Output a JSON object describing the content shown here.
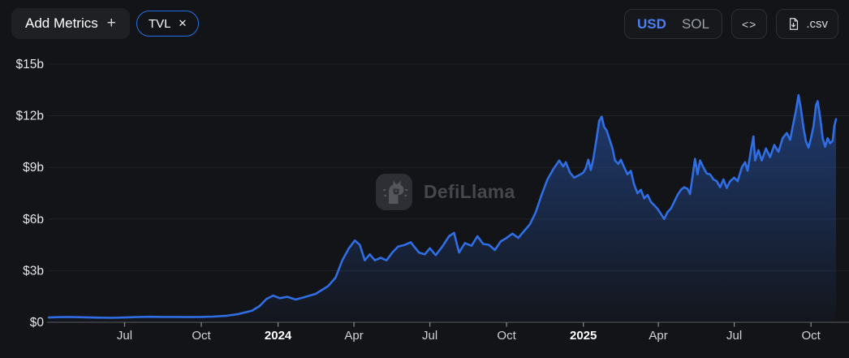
{
  "toolbar": {
    "add_metrics": {
      "label": "Add Metrics",
      "plus_icon": "+"
    },
    "metric_pill": {
      "label": "TVL",
      "close_icon": "✕"
    },
    "currency_toggle": {
      "options": [
        "USD",
        "SOL"
      ],
      "selected": "USD"
    },
    "embed_button": {
      "icon": "<>"
    },
    "csv_button": {
      "label": ".csv"
    }
  },
  "watermark": {
    "text": "DefiLlama"
  },
  "colors": {
    "background": "#131418",
    "accent_blue": "#2172e5",
    "line": "#2f6ee4",
    "area_top": "rgba(47,110,228,0.50)",
    "area_bottom": "rgba(47,110,228,0.02)",
    "grid": "#1f2125",
    "axis_line": "#4b4d52",
    "tick": "#8a8c90",
    "y_label": "#e4e6e9",
    "x_label": "#cfd2d6",
    "x_label_bold": "#ffffff",
    "usd_active": "#4c7ef3"
  },
  "chart_data": {
    "type": "area",
    "legend": false,
    "grid": true,
    "y_axis": {
      "min": 0,
      "max": 15,
      "tick_values": [
        0,
        3,
        6,
        9,
        12,
        15
      ],
      "tick_labels": [
        "$0",
        "$3b",
        "$6b",
        "$9b",
        "$12b",
        "$15b"
      ]
    },
    "x_axis": {
      "ticks": [
        {
          "date": "2023-07-01",
          "label": "Jul",
          "bold": false
        },
        {
          "date": "2023-10-01",
          "label": "Oct",
          "bold": false
        },
        {
          "date": "2024-01-01",
          "label": "2024",
          "bold": true
        },
        {
          "date": "2024-04-01",
          "label": "Apr",
          "bold": false
        },
        {
          "date": "2024-07-01",
          "label": "Jul",
          "bold": false
        },
        {
          "date": "2024-10-01",
          "label": "Oct",
          "bold": false
        },
        {
          "date": "2025-01-01",
          "label": "2025",
          "bold": true
        },
        {
          "date": "2025-04-01",
          "label": "Apr",
          "bold": false
        },
        {
          "date": "2025-07-01",
          "label": "Jul",
          "bold": false
        },
        {
          "date": "2025-10-01",
          "label": "Oct",
          "bold": false
        }
      ]
    },
    "series": [
      {
        "name": "TVL",
        "currency": "USD",
        "unit": "billions USD",
        "points": [
          [
            "2023-04-01",
            0.28
          ],
          [
            "2023-04-15",
            0.3
          ],
          [
            "2023-05-01",
            0.3
          ],
          [
            "2023-05-15",
            0.29
          ],
          [
            "2023-06-01",
            0.27
          ],
          [
            "2023-06-15",
            0.26
          ],
          [
            "2023-07-01",
            0.28
          ],
          [
            "2023-07-15",
            0.3
          ],
          [
            "2023-08-01",
            0.32
          ],
          [
            "2023-08-15",
            0.31
          ],
          [
            "2023-09-01",
            0.31
          ],
          [
            "2023-09-15",
            0.3
          ],
          [
            "2023-10-01",
            0.31
          ],
          [
            "2023-10-15",
            0.33
          ],
          [
            "2023-11-01",
            0.38
          ],
          [
            "2023-11-15",
            0.48
          ],
          [
            "2023-12-01",
            0.68
          ],
          [
            "2023-12-10",
            0.95
          ],
          [
            "2023-12-18",
            1.35
          ],
          [
            "2023-12-26",
            1.55
          ],
          [
            "2024-01-03",
            1.4
          ],
          [
            "2024-01-12",
            1.48
          ],
          [
            "2024-01-22",
            1.32
          ],
          [
            "2024-02-01",
            1.45
          ],
          [
            "2024-02-15",
            1.65
          ],
          [
            "2024-03-01",
            2.1
          ],
          [
            "2024-03-10",
            2.6
          ],
          [
            "2024-03-18",
            3.6
          ],
          [
            "2024-03-26",
            4.3
          ],
          [
            "2024-04-02",
            4.75
          ],
          [
            "2024-04-08",
            4.5
          ],
          [
            "2024-04-14",
            3.6
          ],
          [
            "2024-04-20",
            3.95
          ],
          [
            "2024-04-26",
            3.6
          ],
          [
            "2024-05-03",
            3.75
          ],
          [
            "2024-05-10",
            3.6
          ],
          [
            "2024-05-17",
            4.05
          ],
          [
            "2024-05-24",
            4.4
          ],
          [
            "2024-06-01",
            4.5
          ],
          [
            "2024-06-08",
            4.65
          ],
          [
            "2024-06-18",
            4.05
          ],
          [
            "2024-06-25",
            3.95
          ],
          [
            "2024-07-01",
            4.3
          ],
          [
            "2024-07-08",
            3.9
          ],
          [
            "2024-07-16",
            4.4
          ],
          [
            "2024-07-24",
            5.0
          ],
          [
            "2024-07-30",
            5.2
          ],
          [
            "2024-08-05",
            4.05
          ],
          [
            "2024-08-12",
            4.6
          ],
          [
            "2024-08-20",
            4.45
          ],
          [
            "2024-08-27",
            5.0
          ],
          [
            "2024-09-03",
            4.55
          ],
          [
            "2024-09-10",
            4.5
          ],
          [
            "2024-09-17",
            4.2
          ],
          [
            "2024-09-24",
            4.7
          ],
          [
            "2024-10-01",
            4.9
          ],
          [
            "2024-10-08",
            5.15
          ],
          [
            "2024-10-15",
            4.9
          ],
          [
            "2024-10-22",
            5.3
          ],
          [
            "2024-10-29",
            5.7
          ],
          [
            "2024-11-05",
            6.4
          ],
          [
            "2024-11-12",
            7.4
          ],
          [
            "2024-11-19",
            8.3
          ],
          [
            "2024-11-26",
            8.9
          ],
          [
            "2024-12-03",
            9.4
          ],
          [
            "2024-12-08",
            9.05
          ],
          [
            "2024-12-11",
            9.3
          ],
          [
            "2024-12-16",
            8.7
          ],
          [
            "2024-12-21",
            8.4
          ],
          [
            "2024-12-27",
            8.55
          ],
          [
            "2025-01-01",
            8.7
          ],
          [
            "2025-01-04",
            8.95
          ],
          [
            "2025-01-07",
            9.45
          ],
          [
            "2025-01-10",
            8.85
          ],
          [
            "2025-01-13",
            9.5
          ],
          [
            "2025-01-17",
            10.7
          ],
          [
            "2025-01-20",
            11.7
          ],
          [
            "2025-01-23",
            11.95
          ],
          [
            "2025-01-26",
            11.35
          ],
          [
            "2025-01-29",
            11.15
          ],
          [
            "2025-02-01",
            10.7
          ],
          [
            "2025-02-05",
            10.1
          ],
          [
            "2025-02-08",
            9.4
          ],
          [
            "2025-02-12",
            9.2
          ],
          [
            "2025-02-15",
            9.45
          ],
          [
            "2025-02-19",
            9.0
          ],
          [
            "2025-02-23",
            8.6
          ],
          [
            "2025-02-27",
            8.8
          ],
          [
            "2025-03-03",
            8.0
          ],
          [
            "2025-03-07",
            7.5
          ],
          [
            "2025-03-11",
            7.7
          ],
          [
            "2025-03-15",
            7.2
          ],
          [
            "2025-03-19",
            7.4
          ],
          [
            "2025-03-23",
            7.0
          ],
          [
            "2025-03-27",
            6.8
          ],
          [
            "2025-03-31",
            6.6
          ],
          [
            "2025-04-04",
            6.3
          ],
          [
            "2025-04-08",
            6.0
          ],
          [
            "2025-04-12",
            6.4
          ],
          [
            "2025-04-16",
            6.6
          ],
          [
            "2025-04-20",
            7.0
          ],
          [
            "2025-04-24",
            7.4
          ],
          [
            "2025-04-28",
            7.7
          ],
          [
            "2025-05-02",
            7.85
          ],
          [
            "2025-05-06",
            7.75
          ],
          [
            "2025-05-09",
            7.45
          ],
          [
            "2025-05-12",
            8.5
          ],
          [
            "2025-05-15",
            9.5
          ],
          [
            "2025-05-18",
            8.6
          ],
          [
            "2025-05-21",
            9.4
          ],
          [
            "2025-05-25",
            9.0
          ],
          [
            "2025-05-29",
            8.65
          ],
          [
            "2025-06-02",
            8.6
          ],
          [
            "2025-06-06",
            8.3
          ],
          [
            "2025-06-10",
            8.2
          ],
          [
            "2025-06-14",
            7.85
          ],
          [
            "2025-06-18",
            8.3
          ],
          [
            "2025-06-22",
            7.8
          ],
          [
            "2025-06-26",
            8.2
          ],
          [
            "2025-07-01",
            8.4
          ],
          [
            "2025-07-05",
            8.2
          ],
          [
            "2025-07-10",
            9.0
          ],
          [
            "2025-07-14",
            9.3
          ],
          [
            "2025-07-17",
            8.8
          ],
          [
            "2025-07-21",
            10.0
          ],
          [
            "2025-07-24",
            10.8
          ],
          [
            "2025-07-26",
            9.4
          ],
          [
            "2025-07-30",
            10.0
          ],
          [
            "2025-08-03",
            9.4
          ],
          [
            "2025-08-08",
            10.1
          ],
          [
            "2025-08-13",
            9.6
          ],
          [
            "2025-08-18",
            10.3
          ],
          [
            "2025-08-23",
            9.9
          ],
          [
            "2025-08-28",
            10.7
          ],
          [
            "2025-09-02",
            11.0
          ],
          [
            "2025-09-06",
            10.6
          ],
          [
            "2025-09-10",
            11.6
          ],
          [
            "2025-09-13",
            12.3
          ],
          [
            "2025-09-16",
            13.2
          ],
          [
            "2025-09-19",
            12.4
          ],
          [
            "2025-09-22",
            11.3
          ],
          [
            "2025-09-25",
            10.5
          ],
          [
            "2025-09-28",
            10.15
          ],
          [
            "2025-10-01",
            10.7
          ],
          [
            "2025-10-04",
            11.4
          ],
          [
            "2025-10-07",
            12.6
          ],
          [
            "2025-10-09",
            12.85
          ],
          [
            "2025-10-12",
            11.9
          ],
          [
            "2025-10-15",
            10.7
          ],
          [
            "2025-10-18",
            10.2
          ],
          [
            "2025-10-21",
            10.7
          ],
          [
            "2025-10-24",
            10.4
          ],
          [
            "2025-10-27",
            10.55
          ],
          [
            "2025-10-29",
            11.4
          ],
          [
            "2025-10-31",
            11.8
          ]
        ]
      }
    ]
  }
}
